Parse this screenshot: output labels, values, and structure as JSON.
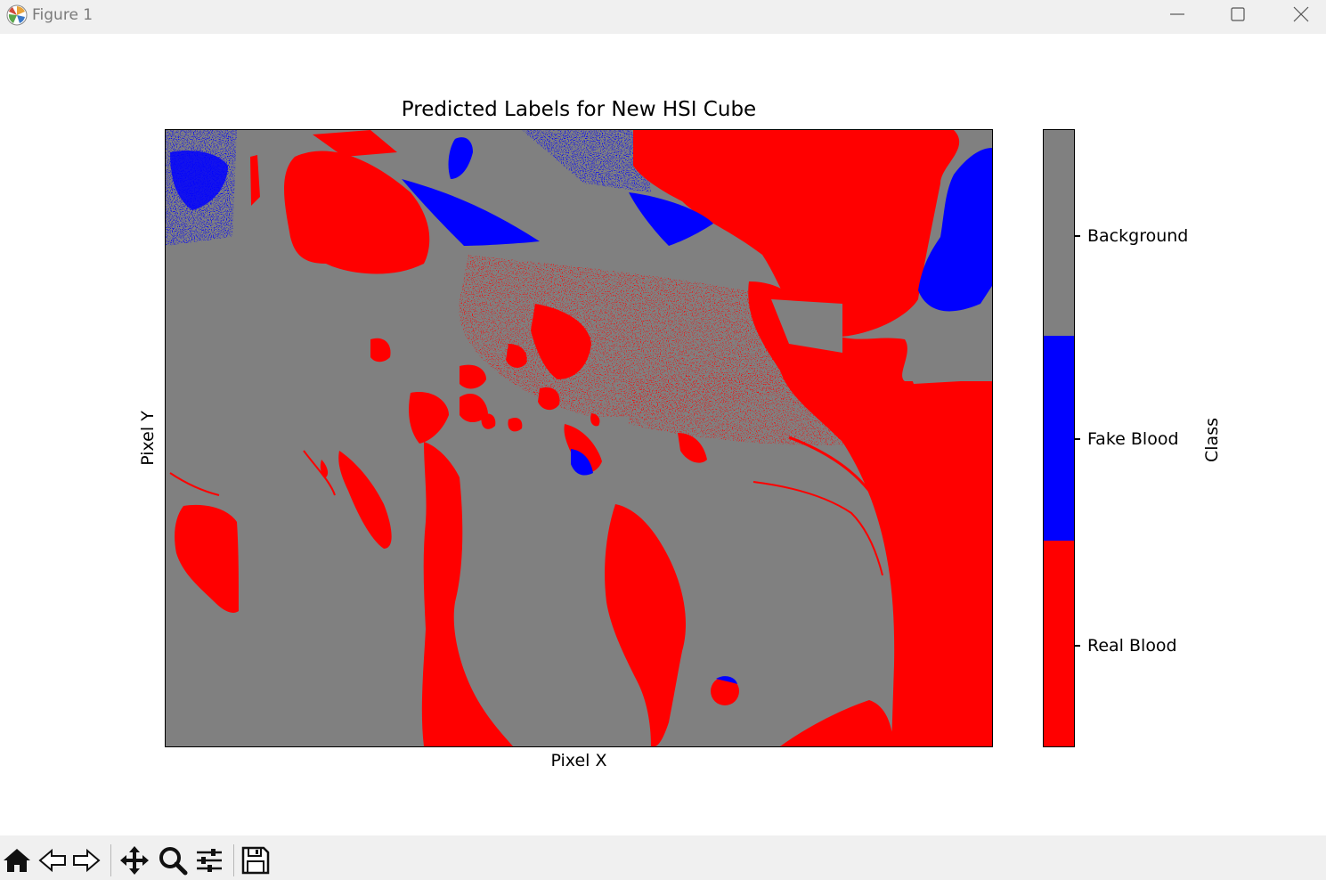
{
  "window": {
    "title": "Figure 1",
    "app_icon": "matplotlib-icon",
    "controls": [
      "minimize-icon",
      "maximize-icon",
      "close-icon"
    ]
  },
  "colors": {
    "real_blood": "#ff0000",
    "fake_blood": "#0000ff",
    "background": "#808080",
    "titlebar": "#f0f0f0"
  },
  "chart_data": {
    "type": "heatmap",
    "title": "Predicted Labels for New HSI Cube",
    "xlabel": "Pixel X",
    "ylabel": "Pixel Y",
    "xticks": [],
    "yticks": [],
    "colorbar": {
      "label": "Class",
      "classes": [
        {
          "name": "Real Blood",
          "value": 0,
          "color": "#ff0000"
        },
        {
          "name": "Fake Blood",
          "value": 1,
          "color": "#0000ff"
        },
        {
          "name": "Background",
          "value": 2,
          "color": "#808080"
        }
      ]
    }
  },
  "toolbar": {
    "buttons": [
      "home-icon",
      "back-icon",
      "forward-icon",
      "pan-icon",
      "zoom-icon",
      "configure-subplots-icon",
      "save-icon"
    ]
  }
}
